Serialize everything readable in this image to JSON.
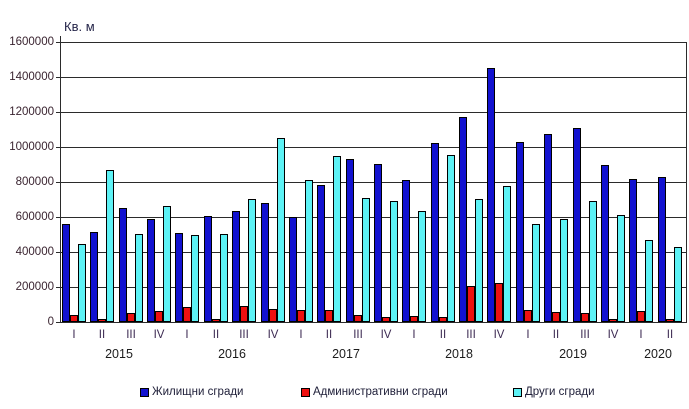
{
  "unit_label": "Кв. м",
  "chart_data": {
    "type": "bar",
    "title": "",
    "ylabel": "Кв. м",
    "xlabel": "",
    "ylim": [
      0,
      1600000
    ],
    "ytick_step": 200000,
    "grid": true,
    "legend_position": "bottom",
    "y_ticks": [
      "1600000",
      "1400000",
      "1200000",
      "1000000",
      "800000",
      "600000",
      "400000",
      "200000",
      "0"
    ],
    "groups": [
      {
        "year": "2015",
        "quarters": [
          "I",
          "II",
          "III",
          "IV"
        ]
      },
      {
        "year": "2016",
        "quarters": [
          "I",
          "II",
          "III",
          "IV"
        ]
      },
      {
        "year": "2017",
        "quarters": [
          "I",
          "II",
          "III",
          "IV"
        ]
      },
      {
        "year": "2018",
        "quarters": [
          "I",
          "II",
          "III",
          "IV"
        ]
      },
      {
        "year": "2019",
        "quarters": [
          "I",
          "II",
          "III",
          "IV"
        ]
      },
      {
        "year": "2020",
        "quarters": [
          "I",
          "II"
        ]
      }
    ],
    "series": [
      {
        "name": "Жилищни сгради",
        "color": "#1212d0",
        "values": [
          560000,
          512000,
          650000,
          590000,
          509000,
          606000,
          634000,
          678000,
          600000,
          780000,
          930000,
          900000,
          811000,
          1021000,
          1170000,
          1451000,
          1030000,
          1074000,
          1109000,
          895000,
          815000,
          827000
        ]
      },
      {
        "name": "Административни сгради",
        "color": "#ee1010",
        "values": [
          40000,
          19000,
          51000,
          63000,
          88000,
          19000,
          90000,
          74000,
          70000,
          70000,
          40000,
          27000,
          34000,
          30000,
          208000,
          221000,
          69000,
          59000,
          53000,
          15000,
          63000,
          15000
        ]
      },
      {
        "name": "Други сгради",
        "color": "#5df2f5",
        "values": [
          445000,
          867000,
          501000,
          661000,
          497000,
          501000,
          705000,
          1050000,
          811000,
          950000,
          707000,
          690000,
          636000,
          956000,
          705000,
          779000,
          560000,
          587000,
          690000,
          611000,
          467000,
          427000
        ]
      }
    ],
    "legend_x_positions": [
      140,
      301,
      513
    ]
  }
}
